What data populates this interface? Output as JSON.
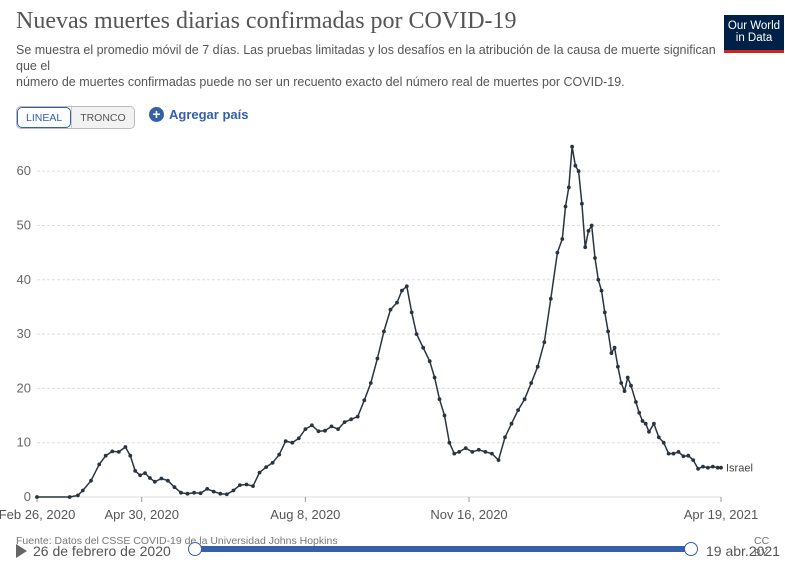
{
  "header": {
    "title": "Nuevas muertes diarias confirmadas por COVID-19",
    "subtitle_line1": "Se muestra el promedio móvil de 7 días. Las pruebas limitadas y los desafíos en la atribución de la causa de muerte significan que el",
    "subtitle_line2": "número de muertes confirmadas puede no ser un recuento exacto del número real de muertes por COVID-19.",
    "logo_line1": "Our World",
    "logo_line2": "in Data"
  },
  "controls": {
    "linear_label": "LINEAL",
    "log_label": "TRONCO",
    "add_country_label": "Agregar país"
  },
  "chart_data": {
    "type": "line",
    "title": "Nuevas muertes diarias confirmadas por COVID-19",
    "xlabel": "",
    "ylabel": "",
    "ylim": [
      0,
      65
    ],
    "yticks": [
      0,
      10,
      20,
      30,
      40,
      50,
      60
    ],
    "xtick_labels": [
      "Feb 26, 2020",
      "Apr 30, 2020",
      "Aug 8, 2020",
      "Nov 16, 2020",
      "Apr 19, 2021"
    ],
    "xtick_days": [
      0,
      64,
      164,
      264,
      418
    ],
    "series": [
      {
        "name": "Israel",
        "color": "#2a3440",
        "points": [
          [
            0,
            0
          ],
          [
            20,
            0
          ],
          [
            25,
            0.3
          ],
          [
            28,
            1.2
          ],
          [
            33,
            3
          ],
          [
            38,
            6
          ],
          [
            42,
            7.6
          ],
          [
            46,
            8.4
          ],
          [
            50,
            8.3
          ],
          [
            54,
            9.2
          ],
          [
            57,
            7.6
          ],
          [
            60,
            4.8
          ],
          [
            63,
            4
          ],
          [
            66,
            4.4
          ],
          [
            69,
            3.5
          ],
          [
            72,
            2.8
          ],
          [
            76,
            3.4
          ],
          [
            80,
            3
          ],
          [
            84,
            1.8
          ],
          [
            88,
            0.8
          ],
          [
            92,
            0.6
          ],
          [
            96,
            0.8
          ],
          [
            100,
            0.7
          ],
          [
            104,
            1.5
          ],
          [
            108,
            1
          ],
          [
            112,
            0.6
          ],
          [
            116,
            0.5
          ],
          [
            120,
            1.2
          ],
          [
            124,
            2.2
          ],
          [
            128,
            2.3
          ],
          [
            132,
            2
          ],
          [
            136,
            4.5
          ],
          [
            140,
            5.5
          ],
          [
            144,
            6.3
          ],
          [
            148,
            7.8
          ],
          [
            152,
            10.3
          ],
          [
            156,
            10
          ],
          [
            160,
            10.8
          ],
          [
            164,
            12.5
          ],
          [
            168,
            13.2
          ],
          [
            172,
            12.1
          ],
          [
            176,
            12.2
          ],
          [
            180,
            13
          ],
          [
            184,
            12.5
          ],
          [
            188,
            13.8
          ],
          [
            192,
            14.3
          ],
          [
            196,
            14.8
          ],
          [
            200,
            17.8
          ],
          [
            204,
            21
          ],
          [
            208,
            25.5
          ],
          [
            212,
            30.5
          ],
          [
            216,
            34.5
          ],
          [
            220,
            35.8
          ],
          [
            223,
            38
          ],
          [
            226,
            38.8
          ],
          [
            229,
            34
          ],
          [
            232,
            30
          ],
          [
            236,
            27.5
          ],
          [
            240,
            25
          ],
          [
            243,
            22
          ],
          [
            246,
            18
          ],
          [
            249,
            15
          ],
          [
            252,
            10
          ],
          [
            255,
            8
          ],
          [
            258,
            8.3
          ],
          [
            262,
            9
          ],
          [
            266,
            8.3
          ],
          [
            270,
            8.7
          ],
          [
            274,
            8.3
          ],
          [
            278,
            8
          ],
          [
            282,
            6.8
          ],
          [
            286,
            11
          ],
          [
            290,
            13.5
          ],
          [
            294,
            16
          ],
          [
            298,
            18
          ],
          [
            302,
            21
          ],
          [
            306,
            24
          ],
          [
            310,
            28.5
          ],
          [
            314,
            36.5
          ],
          [
            318,
            45
          ],
          [
            321,
            47.5
          ],
          [
            323,
            53.5
          ],
          [
            325,
            57
          ],
          [
            327,
            64.5
          ],
          [
            329,
            61
          ],
          [
            331,
            60
          ],
          [
            333,
            54
          ],
          [
            335,
            46
          ],
          [
            337,
            49
          ],
          [
            339,
            50
          ],
          [
            341,
            44
          ],
          [
            343,
            40
          ],
          [
            345,
            38
          ],
          [
            347,
            34
          ],
          [
            349,
            30.5
          ],
          [
            351,
            26.5
          ],
          [
            353,
            27.5
          ],
          [
            355,
            24
          ],
          [
            357,
            21
          ],
          [
            359,
            19.5
          ],
          [
            361,
            22
          ],
          [
            363,
            20.5
          ],
          [
            366,
            17.5
          ],
          [
            368,
            15.5
          ],
          [
            370,
            14
          ],
          [
            372,
            13.5
          ],
          [
            374,
            12
          ],
          [
            377,
            13.5
          ],
          [
            380,
            11
          ],
          [
            383,
            10
          ],
          [
            386,
            8
          ],
          [
            389,
            8
          ],
          [
            392,
            8.3
          ],
          [
            395,
            7.5
          ],
          [
            398,
            7.6
          ],
          [
            401,
            6.8
          ],
          [
            404,
            5.2
          ],
          [
            407,
            5.6
          ],
          [
            410,
            5.4
          ],
          [
            413,
            5.6
          ],
          [
            416,
            5.4
          ],
          [
            418,
            5.4
          ]
        ]
      }
    ]
  },
  "footer": {
    "source": "Fuente: Datos del CSSE COVID-19 de la Universidad Johns Hopkins",
    "license": "CC BY",
    "timeline_start": "26 de febrero de 2020",
    "timeline_end": "19 abr.2021"
  }
}
